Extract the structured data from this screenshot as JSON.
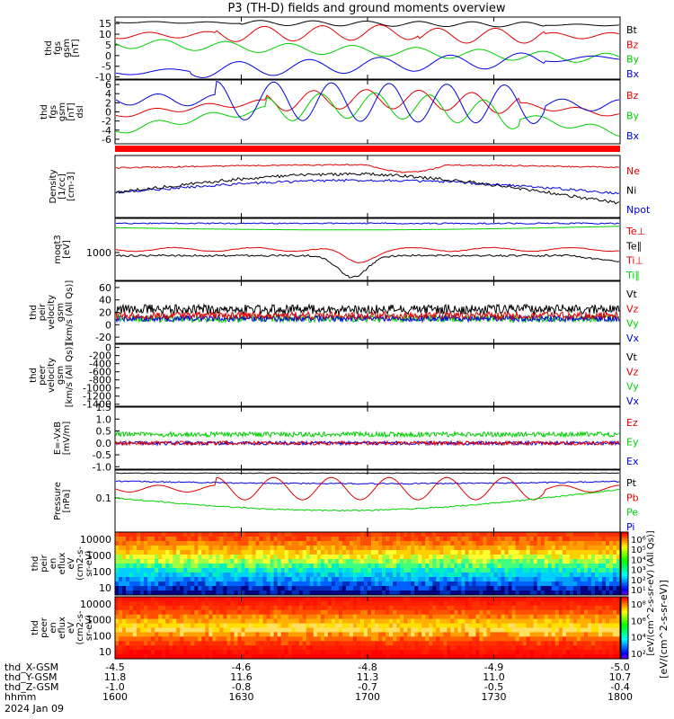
{
  "title": "P3 (TH-D) fields and ground moments overview",
  "date_label": "2024 Jan 09",
  "colors": {
    "black": "#000000",
    "red": "#e00000",
    "green": "#00d000",
    "blue": "#0000e0",
    "band": "#ff0000"
  },
  "chart_data": {
    "type": "line",
    "x_axis": {
      "unit": "hhmm",
      "ticks": [
        "1600",
        "1630",
        "1700",
        "1730",
        "1800"
      ],
      "xlim": [
        1600,
        1800
      ],
      "ephemeris": [
        {
          "label": "thd_X-GSM",
          "values": [
            "-4.5",
            "-4.6",
            "-4.8",
            "-4.9",
            "-5.0"
          ]
        },
        {
          "label": "thd_Y-GSM",
          "values": [
            "11.8",
            "11.6",
            "11.3",
            "11.0",
            "10.7"
          ]
        },
        {
          "label": "thd_Z-GSM",
          "values": [
            "-1.0",
            "-0.8",
            "-0.7",
            "-0.5",
            "-0.4"
          ]
        },
        {
          "label": "hhmm",
          "values": [
            "1600",
            "1630",
            "1700",
            "1730",
            "1800"
          ]
        }
      ]
    },
    "panels": [
      {
        "id": "fgs",
        "ylabel": [
          "thd",
          "fgs",
          "gsm",
          "[nT]"
        ],
        "yticks": [
          "15",
          "10",
          "5",
          "0",
          "-5",
          "-10"
        ],
        "ylim": [
          -11,
          18
        ],
        "legend": [
          "Bt",
          "Bz",
          "By",
          "Bx"
        ]
      },
      {
        "id": "fgs-dsl",
        "ylabel": [
          "thd",
          "fgs",
          "gsm",
          "[nT]",
          "dsl"
        ],
        "yticks": [
          "6",
          "4",
          "2",
          "0",
          "-2",
          "-4",
          "-6"
        ],
        "ylim": [
          -7,
          7
        ],
        "legend": [
          "Bz",
          "By",
          "Bx"
        ]
      },
      {
        "id": "density",
        "ylabel": [
          "Density",
          "[1/cc]",
          "[cm-3]"
        ],
        "yticks": [],
        "log": true,
        "legend": [
          "Ne",
          "Ni",
          "Npot"
        ]
      },
      {
        "id": "temperature",
        "ylabel": [
          "moqt3",
          "[eV]"
        ],
        "yticks": [
          "1000"
        ],
        "log": true,
        "legend": [
          "Te⊥",
          "Te∥",
          "Ti⊥",
          "Ti∥"
        ]
      },
      {
        "id": "peir-velocity",
        "ylabel": [
          "thd",
          "peir",
          "velocity",
          "gsm",
          "[km/s (All Qs)]"
        ],
        "yticks": [
          "60",
          "40",
          "20",
          "0",
          "-20"
        ],
        "ylim": [
          -30,
          70
        ],
        "legend": [
          "Vt",
          "Vz",
          "Vy",
          "Vx"
        ]
      },
      {
        "id": "peer-velocity",
        "ylabel": [
          "thd",
          "peer",
          "velocity",
          "gsm",
          "[km/s (All Qs)]"
        ],
        "yticks": [
          "0",
          "-200",
          "-400",
          "-600",
          "-800",
          "-1000",
          "-1200",
          "-1400"
        ],
        "ylim": [
          -1450,
          80
        ],
        "legend": [
          "Vt",
          "Vz",
          "Vy",
          "Vx"
        ]
      },
      {
        "id": "efield",
        "ylabel": [
          "E=-VxB",
          "[mV/m]"
        ],
        "yticks": [
          "1.5",
          "1.0",
          "0.5",
          "0.0",
          "-0.5",
          "-1.0"
        ],
        "ylim": [
          -1.1,
          1.5
        ],
        "legend": [
          "Ez",
          "Ey",
          "Ex"
        ]
      },
      {
        "id": "pressure",
        "ylabel": [
          "Pressure",
          "[nPa]"
        ],
        "yticks": [
          "0.1"
        ],
        "log": true,
        "legend": [
          "Pt",
          "Pb",
          "Pe",
          "Pi"
        ]
      },
      {
        "id": "peir-spec",
        "ylabel": [
          "thd",
          "peir",
          "en",
          "eflux",
          "eV",
          "(cm2-s-",
          "sr-eV)"
        ],
        "yticks": [
          "10000",
          "1000",
          "100",
          "10"
        ],
        "log": true
      },
      {
        "id": "peer-spec",
        "ylabel": [
          "thd",
          "peer",
          "en",
          "eflux",
          "eV",
          "(cm2-s-",
          "sr-eV)"
        ],
        "yticks": [
          "10000",
          "1000",
          "100",
          "10"
        ],
        "log": true
      }
    ],
    "colorbar": {
      "ticks_ion": [
        "10⁶",
        "10⁵",
        "10⁴",
        "10³",
        "10²",
        "10¹"
      ],
      "ticks_electron": [
        "10⁸",
        "10⁶",
        "10⁴",
        "10²"
      ],
      "ylabel": "[eV/(cm^2-s-sr-eV)]",
      "overlap_label": "[eV/(cm^2-s-sr-eV) (All Qs)]"
    }
  }
}
